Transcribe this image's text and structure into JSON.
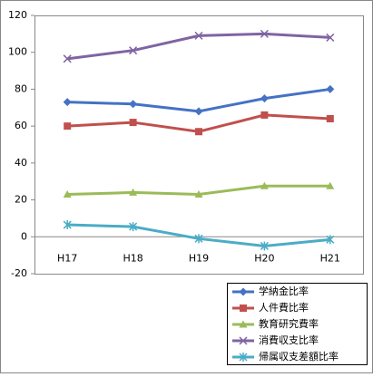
{
  "chart_data": {
    "type": "line",
    "categories": [
      "H17",
      "H18",
      "H19",
      "H20",
      "H21"
    ],
    "series": [
      {
        "name": "学納金比率",
        "color": "#4472c4",
        "marker": "diamond",
        "values": [
          73,
          72,
          68,
          75,
          80
        ]
      },
      {
        "name": "人件費比率",
        "color": "#c0504d",
        "marker": "square",
        "values": [
          60,
          62,
          57,
          66,
          64
        ]
      },
      {
        "name": "教育研究費率",
        "color": "#9bbb59",
        "marker": "triangle",
        "values": [
          23,
          24,
          23,
          27.5,
          27.5
        ]
      },
      {
        "name": "消費収支比率",
        "color": "#8064a2",
        "marker": "x",
        "values": [
          96.5,
          101,
          109,
          110,
          108
        ]
      },
      {
        "name": "帰属収支差額比率",
        "color": "#4bacc6",
        "marker": "asterisk",
        "values": [
          6.5,
          5.5,
          -1,
          -5,
          -1.5
        ]
      }
    ],
    "ylim": [
      -20,
      120
    ],
    "yticks": [
      -20,
      0,
      20,
      40,
      60,
      80,
      100,
      120
    ],
    "grid": false,
    "legend": "bottom-right"
  }
}
